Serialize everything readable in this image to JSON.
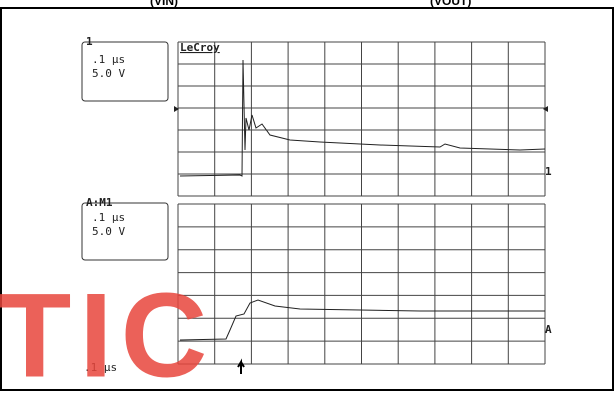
{
  "header": {
    "left": "(VIN)",
    "right": "(VOUT)"
  },
  "upper": {
    "channel": "1",
    "timebase": ".1 μs",
    "volts": "5.0 V",
    "brand": "LeCroy",
    "marker": "1"
  },
  "lower": {
    "channel": "A:M1",
    "timebase": ".1 μs",
    "volts": "5.0 V",
    "marker": "A",
    "footer": ".1 μs"
  },
  "watermark": "TIC"
}
